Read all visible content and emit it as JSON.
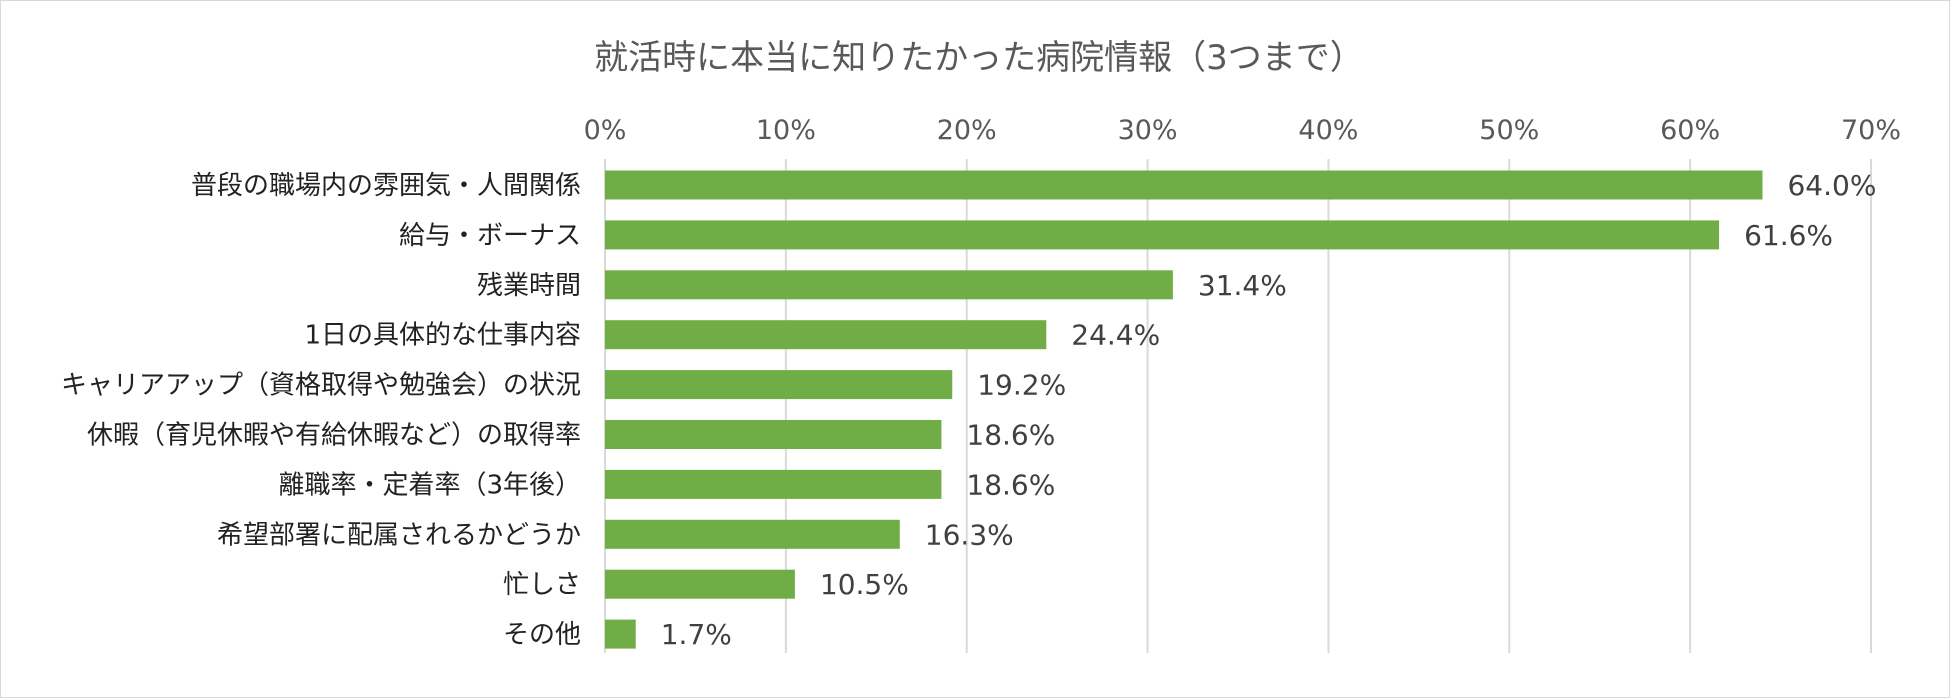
{
  "chart_data": {
    "type": "bar",
    "orientation": "horizontal",
    "title": "就活時に本当に知りたかった病院情報（3つまで）",
    "categories": [
      "普段の職場内の雰囲気・人間関係",
      "給与・ボーナス",
      "残業時間",
      "1日の具体的な仕事内容",
      "キャリアアップ（資格取得や勉強会）の状況",
      "休暇（育児休暇や有給休暇など）の取得率",
      "離職率・定着率（3年後）",
      "希望部署に配属されるかどうか",
      "忙しさ",
      "その他"
    ],
    "values": [
      64.0,
      61.6,
      31.4,
      24.4,
      19.2,
      18.6,
      18.6,
      16.3,
      10.5,
      1.7
    ],
    "value_labels": [
      "64.0%",
      "61.6%",
      "31.4%",
      "24.4%",
      "19.2%",
      "18.6%",
      "18.6%",
      "16.3%",
      "10.5%",
      "1.7%"
    ],
    "x_ticks": [
      "0%",
      "10%",
      "20%",
      "30%",
      "40%",
      "50%",
      "60%",
      "70%"
    ],
    "xlim": [
      0,
      70
    ],
    "x_axis_position": "top",
    "grid": true,
    "legend": "none",
    "bar_color": "#70ad47",
    "grid_color": "#d9d9d9"
  }
}
